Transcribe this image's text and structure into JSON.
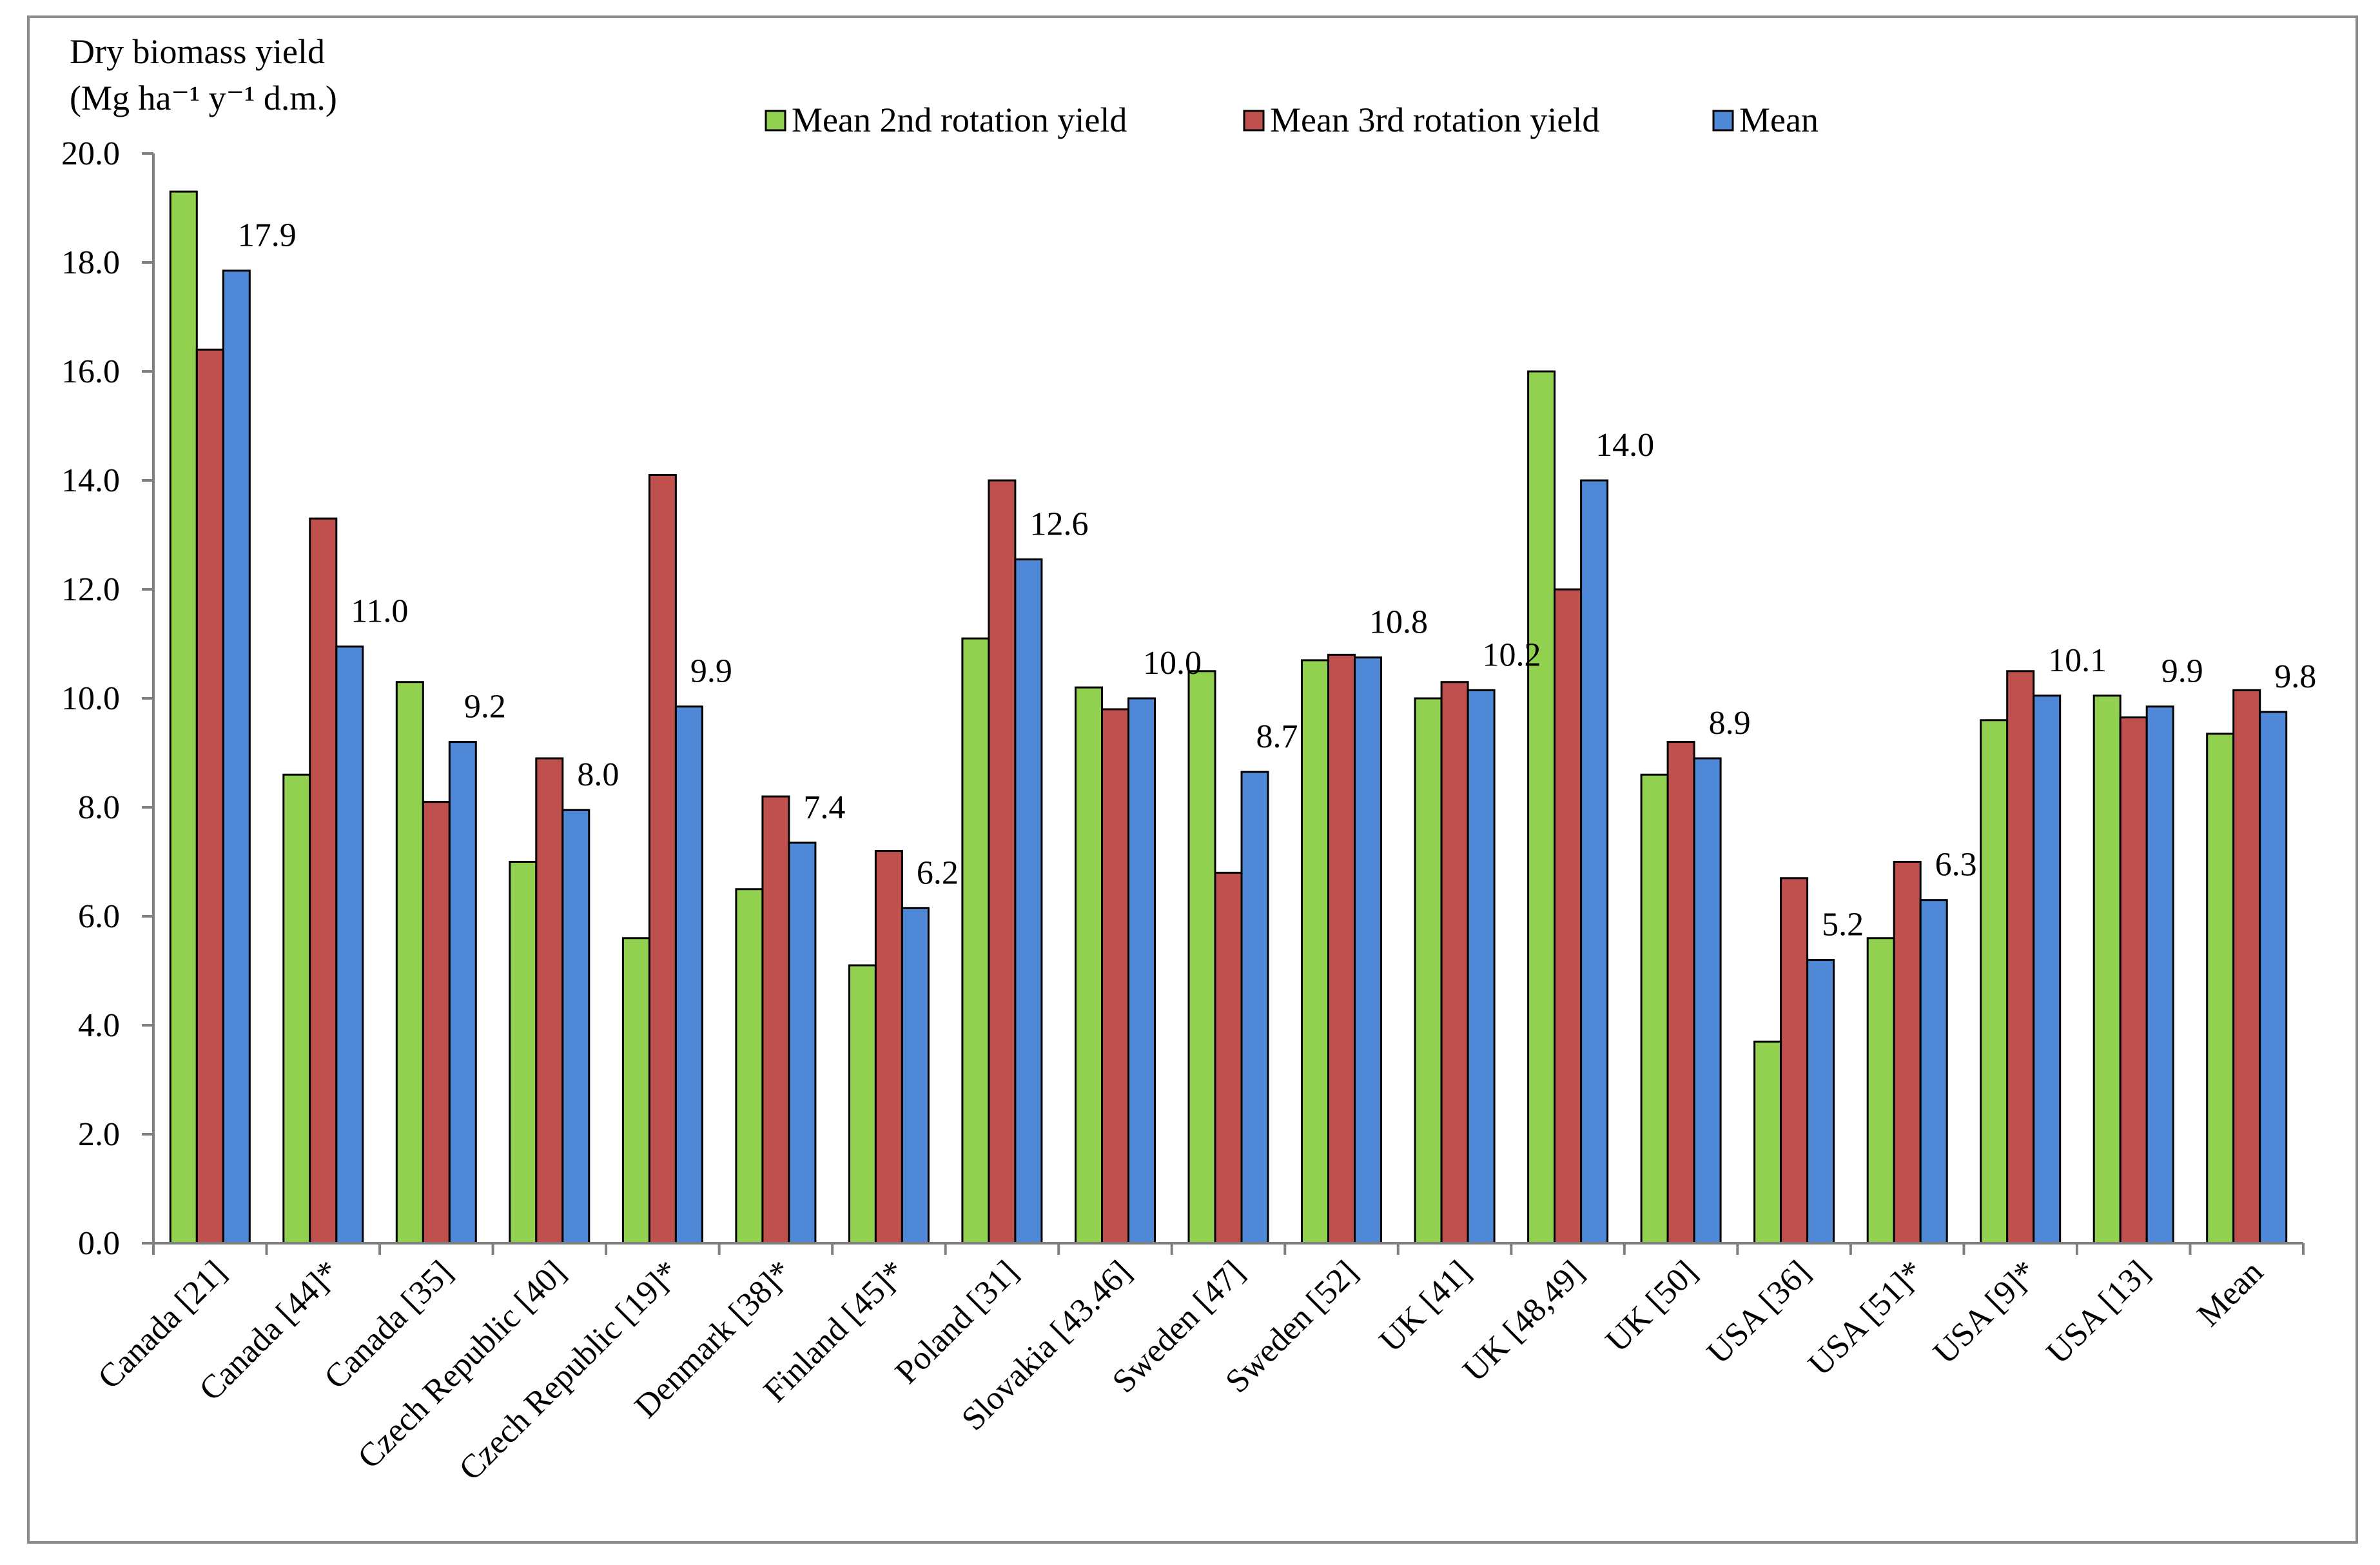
{
  "chart_data": {
    "type": "bar",
    "title": "",
    "ylabel": "Dry biomass yield",
    "ylabel_units": "(Mg ha⁻¹ y⁻¹ d.m.)",
    "xlabel": "",
    "ylim": [
      0,
      20
    ],
    "yticks": [
      0,
      2,
      4,
      6,
      8,
      10,
      12,
      14,
      16,
      18,
      20
    ],
    "ytick_labels": [
      "0.0",
      "2.0",
      "4.0",
      "6.0",
      "8.0",
      "10.0",
      "12.0",
      "14.0",
      "16.0",
      "18.0",
      "20.0"
    ],
    "grid": false,
    "legend_position": "top",
    "categories": [
      "Canada [21]",
      "Canada [44]*",
      "Canada [35]",
      "Czech Republic [40]",
      "Czech Republic [19]*",
      "Denmark [38]*",
      "Finland [45]*",
      "Poland [31]",
      "Slovakia [43.46]",
      "Sweden [47]",
      "Sweden [52]",
      "UK [41]",
      "UK [48,49]",
      "UK [50]",
      "USA [36]",
      "USA [51]*",
      "USA [9]*",
      "USA [13]",
      "Mean"
    ],
    "series": [
      {
        "name": "Mean 2nd rotation yield",
        "color": "#92d050",
        "values": [
          19.3,
          8.6,
          10.3,
          7.0,
          5.6,
          6.5,
          5.1,
          11.1,
          10.2,
          10.5,
          10.7,
          10.0,
          16.0,
          8.6,
          3.7,
          5.6,
          9.6,
          10.05,
          9.35
        ]
      },
      {
        "name": "Mean 3rd rotation yield",
        "color": "#c0504d",
        "values": [
          16.4,
          13.3,
          8.1,
          8.9,
          14.1,
          8.2,
          7.2,
          14.0,
          9.8,
          6.8,
          10.8,
          10.3,
          12.0,
          9.2,
          6.7,
          7.0,
          10.5,
          9.65,
          10.15
        ]
      },
      {
        "name": "Mean",
        "color": "#4f88d6",
        "values": [
          17.85,
          10.95,
          9.2,
          7.95,
          9.85,
          7.35,
          6.15,
          12.55,
          10.0,
          8.65,
          10.75,
          10.15,
          14.0,
          8.9,
          5.2,
          6.3,
          10.05,
          9.85,
          9.75
        ]
      }
    ],
    "data_labels": [
      "17.9",
      "11.0",
      "9.2",
      "8.0",
      "9.9",
      "7.4",
      "6.2",
      "12.6",
      "10.0",
      "8.7",
      "10.8",
      "10.2",
      "14.0",
      "8.9",
      "5.2",
      "6.3",
      "10.1",
      "9.9",
      "9.8"
    ]
  }
}
